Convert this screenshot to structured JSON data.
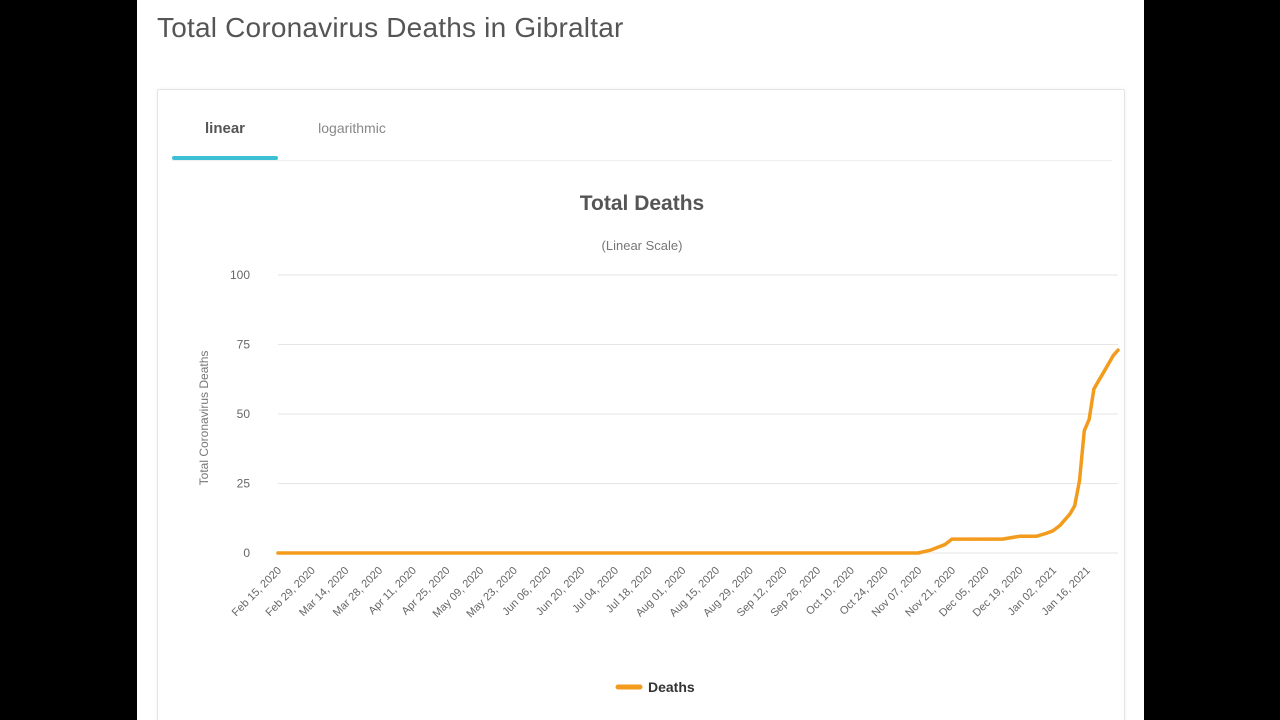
{
  "page": {
    "title": "Total Coronavirus Deaths in Gibraltar"
  },
  "tabs": [
    {
      "label": "linear",
      "active": true
    },
    {
      "label": "logarithmic",
      "active": false
    }
  ],
  "colors": {
    "series": "#f29b1d",
    "tab_accent": "#3cc0d6",
    "grid": "#e6e6e6",
    "text": "#666666"
  },
  "chart_data": {
    "type": "line",
    "title": "Total Deaths",
    "subtitle": "(Linear Scale)",
    "xlabel": "",
    "ylabel": "Total Coronavirus Deaths",
    "ylim": [
      0,
      100
    ],
    "yticks": [
      0,
      25,
      50,
      75,
      100
    ],
    "xticks": [
      "Feb 15, 2020",
      "Feb 29, 2020",
      "Mar 14, 2020",
      "Mar 28, 2020",
      "Apr 11, 2020",
      "Apr 25, 2020",
      "May 09, 2020",
      "May 23, 2020",
      "Jun 06, 2020",
      "Jun 20, 2020",
      "Jul 04, 2020",
      "Jul 18, 2020",
      "Aug 01, 2020",
      "Aug 15, 2020",
      "Aug 29, 2020",
      "Sep 12, 2020",
      "Sep 26, 2020",
      "Oct 10, 2020",
      "Oct 24, 2020",
      "Nov 07, 2020",
      "Nov 21, 2020",
      "Dec 05, 2020",
      "Dec 19, 2020",
      "Jan 02, 2021",
      "Jan 16, 2021"
    ],
    "x_first": "Feb 15, 2020",
    "x_last": "Jan 29, 2021",
    "grid": true,
    "legend_position": "bottom-center",
    "series": [
      {
        "name": "Deaths",
        "points": [
          {
            "x": "Feb 15, 2020",
            "y": 0
          },
          {
            "x": "Nov 07, 2020",
            "y": 0
          },
          {
            "x": "Nov 12, 2020",
            "y": 1
          },
          {
            "x": "Nov 15, 2020",
            "y": 2
          },
          {
            "x": "Nov 18, 2020",
            "y": 3
          },
          {
            "x": "Nov 21, 2020",
            "y": 5
          },
          {
            "x": "Nov 28, 2020",
            "y": 5
          },
          {
            "x": "Dec 05, 2020",
            "y": 5
          },
          {
            "x": "Dec 12, 2020",
            "y": 5
          },
          {
            "x": "Dec 19, 2020",
            "y": 6
          },
          {
            "x": "Dec 26, 2020",
            "y": 6
          },
          {
            "x": "Dec 30, 2020",
            "y": 7
          },
          {
            "x": "Jan 02, 2021",
            "y": 8
          },
          {
            "x": "Jan 05, 2021",
            "y": 10
          },
          {
            "x": "Jan 07, 2021",
            "y": 12
          },
          {
            "x": "Jan 09, 2021",
            "y": 14
          },
          {
            "x": "Jan 11, 2021",
            "y": 17
          },
          {
            "x": "Jan 13, 2021",
            "y": 26
          },
          {
            "x": "Jan 15, 2021",
            "y": 44
          },
          {
            "x": "Jan 17, 2021",
            "y": 48
          },
          {
            "x": "Jan 19, 2021",
            "y": 59
          },
          {
            "x": "Jan 21, 2021",
            "y": 62
          },
          {
            "x": "Jan 23, 2021",
            "y": 65
          },
          {
            "x": "Jan 25, 2021",
            "y": 68
          },
          {
            "x": "Jan 27, 2021",
            "y": 71
          },
          {
            "x": "Jan 29, 2021",
            "y": 73
          }
        ]
      }
    ]
  }
}
